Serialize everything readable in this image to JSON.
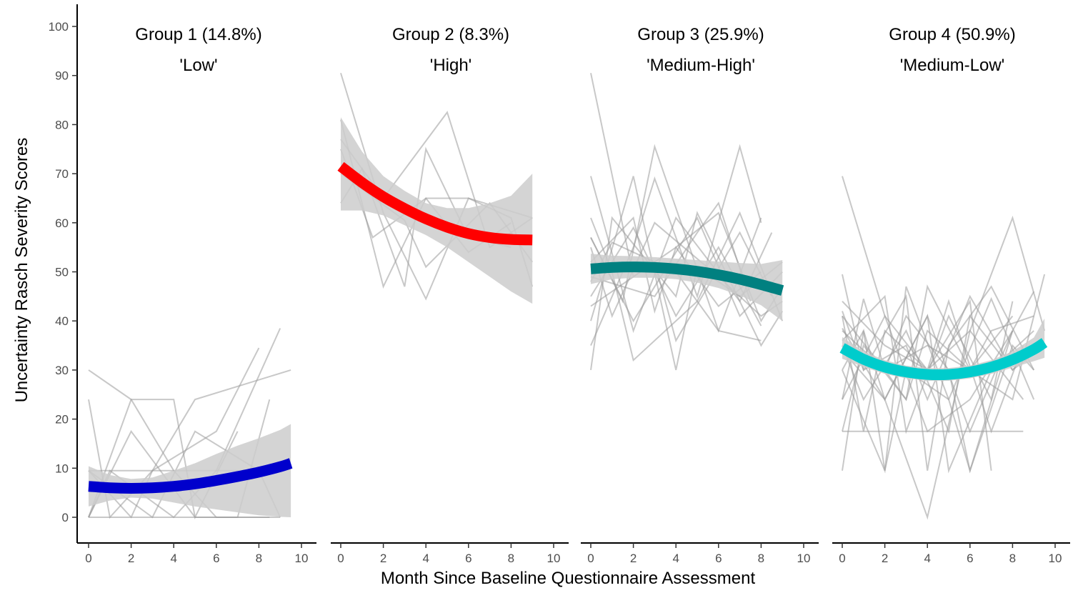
{
  "chart_data": {
    "type": "line",
    "ylabel": "Uncertainty Rasch Severity Scores",
    "xlabel": "Month Since Baseline Questionnaire Assessment",
    "ylim": [
      0,
      100
    ],
    "yticks": [
      0,
      10,
      20,
      30,
      40,
      50,
      60,
      70,
      80,
      90,
      100
    ],
    "xlim": [
      0,
      10
    ],
    "xticks": [
      0,
      2,
      4,
      6,
      8,
      10
    ],
    "grid": false,
    "legend": "none",
    "individual_line_color": "#9a9a9a",
    "ribbon_color": "#cccccc",
    "panels": [
      {
        "title": "Group 1 (14.8%)",
        "subtitle": "'Low'",
        "color": "#0000cc",
        "fit_x": [
          0,
          1,
          2,
          3,
          4,
          5,
          6,
          7,
          8,
          9,
          9.5
        ],
        "fit_y": [
          6.3,
          6.0,
          5.9,
          6.0,
          6.3,
          6.8,
          7.5,
          8.3,
          9.2,
          10.3,
          11.0
        ],
        "ribbon_lower": [
          2.2,
          3.4,
          4.0,
          3.8,
          3.0,
          2.2,
          1.6,
          1.0,
          0.4,
          0.1,
          0.0
        ],
        "ribbon_upper": [
          10.4,
          8.6,
          7.8,
          8.1,
          9.5,
          11.0,
          12.9,
          14.6,
          16.1,
          17.8,
          19.0
        ],
        "trajectories": [
          {
            "x": [
              0,
              2,
              4,
              6,
              8.5
            ],
            "y": [
              0,
              0,
              0,
              0,
              0
            ]
          },
          {
            "x": [
              0,
              2,
              4,
              6,
              8
            ],
            "y": [
              9.5,
              9.5,
              9.5,
              9.5,
              9.5
            ]
          },
          {
            "x": [
              0,
              2,
              4,
              6,
              9
            ],
            "y": [
              30,
              24,
              9.5,
              0,
              0
            ]
          },
          {
            "x": [
              0,
              1,
              3,
              5,
              9.5
            ],
            "y": [
              24,
              0,
              9.5,
              24,
              30
            ]
          },
          {
            "x": [
              0,
              2,
              4,
              5,
              7
            ],
            "y": [
              0,
              24,
              24,
              0,
              17.5
            ]
          },
          {
            "x": [
              0,
              2,
              3,
              6,
              8
            ],
            "y": [
              9.5,
              0,
              9.5,
              17.5,
              34.5
            ]
          },
          {
            "x": [
              0,
              1,
              4,
              6,
              9
            ],
            "y": [
              0,
              9.5,
              0,
              9.5,
              38.5
            ]
          },
          {
            "x": [
              0,
              3,
              5,
              8,
              9
            ],
            "y": [
              9.5,
              0,
              17.5,
              9.5,
              0
            ]
          },
          {
            "x": [
              0,
              2,
              5,
              7,
              8.5
            ],
            "y": [
              0,
              17.5,
              0,
              0,
              24
            ]
          }
        ]
      },
      {
        "title": "Group 2 (8.3%)",
        "subtitle": "'High'",
        "color": "#ff0000",
        "fit_x": [
          0,
          1,
          2,
          3,
          4,
          5,
          6,
          7,
          8,
          9
        ],
        "fit_y": [
          71.5,
          68.2,
          65.3,
          62.9,
          60.8,
          59.1,
          57.8,
          57.0,
          56.6,
          56.5
        ],
        "ribbon_lower": [
          62.5,
          62.5,
          61.5,
          59.5,
          57.5,
          55.0,
          52.0,
          49.0,
          46.0,
          43.5
        ],
        "ribbon_upper": [
          81.5,
          74.5,
          69.5,
          66.5,
          64.0,
          63.0,
          63.0,
          64.0,
          65.5,
          70.0
        ],
        "trajectories": [
          {
            "x": [
              0,
              2,
              4,
              6,
              8,
              9
            ],
            "y": [
              90.5,
              62,
              44.5,
              65,
              61,
              47
            ]
          },
          {
            "x": [
              0,
              2,
              5,
              7,
              9
            ],
            "y": [
              77,
              65,
              82.5,
              55,
              61
            ]
          },
          {
            "x": [
              0,
              1,
              3,
              4,
              6,
              8
            ],
            "y": [
              64,
              71,
              47,
              75,
              57,
              55
            ]
          },
          {
            "x": [
              0,
              2,
              4,
              6,
              9
            ],
            "y": [
              81,
              47,
              65,
              65,
              61
            ]
          },
          {
            "x": [
              0,
              3,
              4,
              7,
              9
            ],
            "y": [
              70,
              60.5,
              51,
              64,
              52
            ]
          },
          {
            "x": [
              0,
              1.5,
              4,
              6,
              8
            ],
            "y": [
              75,
              57,
              65,
              54,
              60
            ]
          }
        ]
      },
      {
        "title": "Group 3 (25.9%)",
        "subtitle": "'Medium-High'",
        "color": "#008080",
        "fit_x": [
          0,
          1,
          2,
          3,
          4,
          5,
          6,
          7,
          8,
          9
        ],
        "fit_y": [
          50.6,
          50.9,
          51.0,
          50.9,
          50.6,
          50.1,
          49.4,
          48.5,
          47.4,
          46.2
        ],
        "ribbon_lower": [
          47.5,
          48.5,
          48.8,
          48.8,
          48.5,
          47.8,
          46.7,
          45.2,
          43.2,
          40.0
        ],
        "ribbon_upper": [
          53.7,
          53.3,
          53.2,
          53.0,
          52.7,
          52.4,
          52.1,
          51.8,
          51.6,
          52.4
        ],
        "trajectories": [
          {
            "x": [
              0,
              2,
              4,
              6,
              8,
              9
            ],
            "y": [
              90.5,
              49,
              55,
              62,
              40,
              47
            ]
          },
          {
            "x": [
              0,
              2,
              4,
              7,
              8.5
            ],
            "y": [
              69.5,
              38,
              61,
              44,
              58
            ]
          },
          {
            "x": [
              0,
              1,
              4,
              5,
              8,
              9
            ],
            "y": [
              30,
              61,
              45,
              62,
              35,
              42
            ]
          },
          {
            "x": [
              0,
              2,
              3,
              5,
              7,
              8
            ],
            "y": [
              35,
              55,
              69,
              45,
              75.5,
              60
            ]
          },
          {
            "x": [
              0,
              1.5,
              3,
              6,
              8
            ],
            "y": [
              57,
              44,
              75.5,
              38,
              61
            ]
          },
          {
            "x": [
              0,
              2,
              4,
              5,
              7,
              9
            ],
            "y": [
              40,
              69.5,
              30,
              51,
              45,
              52
            ]
          },
          {
            "x": [
              0,
              1,
              3,
              6,
              8,
              9
            ],
            "y": [
              55,
              41,
              60,
              49,
              41,
              44
            ]
          },
          {
            "x": [
              0,
              3,
              5,
              6,
              7.5
            ],
            "y": [
              49,
              45,
              58,
              64,
              44
            ]
          },
          {
            "x": [
              0,
              2,
              4,
              6,
              8
            ],
            "y": [
              45,
              59,
              41,
              55,
              39
            ]
          },
          {
            "x": [
              0,
              1,
              2,
              5,
              7,
              9
            ],
            "y": [
              61,
              50,
              32,
              44,
              62,
              40
            ]
          },
          {
            "x": [
              0,
              2,
              3,
              4,
              6,
              8
            ],
            "y": [
              52,
              61,
              42,
              55,
              43,
              50
            ]
          },
          {
            "x": [
              0,
              1,
              4,
              6,
              8
            ],
            "y": [
              48,
              56,
              50,
              38,
              36
            ]
          },
          {
            "x": [
              0,
              2,
              5,
              7,
              9
            ],
            "y": [
              57,
              40,
              61,
              41,
              50
            ]
          },
          {
            "x": [
              0,
              3,
              4,
              7,
              8.5
            ],
            "y": [
              43,
              52,
              36,
              58,
              45
            ]
          }
        ]
      },
      {
        "title": "Group 4 (50.9%)",
        "subtitle": "'Medium-Low'",
        "color": "#00cccc",
        "fit_x": [
          0,
          1,
          2,
          3,
          4,
          5,
          6,
          7,
          8,
          9,
          9.5
        ],
        "fit_y": [
          34.5,
          32.2,
          30.6,
          29.6,
          29.1,
          29.1,
          29.6,
          30.6,
          32.1,
          34.2,
          35.6
        ],
        "ribbon_lower": [
          32.3,
          30.6,
          29.2,
          28.3,
          27.8,
          27.8,
          28.3,
          29.2,
          30.5,
          31.8,
          32.5
        ],
        "ribbon_upper": [
          36.7,
          33.8,
          32.0,
          30.9,
          30.4,
          30.4,
          30.9,
          32.0,
          33.8,
          36.6,
          40.5
        ],
        "trajectories": [
          {
            "x": [
              0,
              2,
              4,
              6,
              8.5
            ],
            "y": [
              17.5,
              17.5,
              17.5,
              17.5,
              17.5
            ]
          },
          {
            "x": [
              0,
              2,
              4,
              6,
              8,
              9.5
            ],
            "y": [
              69.5,
              41,
              30,
              38,
              61,
              38
            ]
          },
          {
            "x": [
              0,
              1,
              2,
              4,
              6,
              8,
              9
            ],
            "y": [
              9.5,
              38,
              24,
              41,
              17.5,
              38,
              46
            ]
          },
          {
            "x": [
              0,
              2,
              4,
              6,
              8.5
            ],
            "y": [
              38.5,
              24,
              0,
              38,
              24
            ]
          },
          {
            "x": [
              0,
              1,
              3,
              4,
              5,
              7,
              9
            ],
            "y": [
              42,
              30,
              45,
              9.5,
              35,
              47,
              30
            ]
          },
          {
            "x": [
              0,
              2,
              3,
              5,
              6,
              8
            ],
            "y": [
              30,
              9.5,
              47,
              24,
              9.5,
              38
            ]
          },
          {
            "x": [
              0,
              1,
              2,
              4,
              6,
              8,
              9.5
            ],
            "y": [
              24,
              44.5,
              30,
              35,
              30,
              24,
              49.5
            ]
          },
          {
            "x": [
              0,
              2,
              3,
              5,
              7,
              8
            ],
            "y": [
              36,
              45,
              17.5,
              41,
              24,
              44
            ]
          },
          {
            "x": [
              0,
              1,
              3,
              4,
              6,
              8,
              9
            ],
            "y": [
              49.5,
              30,
              35,
              24,
              45,
              30,
              35
            ]
          },
          {
            "x": [
              0,
              2,
              4,
              5,
              7,
              9
            ],
            "y": [
              34,
              24,
              41,
              9.5,
              30,
              38
            ]
          },
          {
            "x": [
              0,
              1,
              2,
              4,
              6,
              7
            ],
            "y": [
              41,
              17.5,
              38,
              30,
              44,
              9.5
            ]
          },
          {
            "x": [
              0,
              2,
              3,
              5,
              6,
              8,
              9
            ],
            "y": [
              38,
              30,
              41,
              30,
              9.5,
              35,
              30
            ]
          },
          {
            "x": [
              0,
              1,
              3,
              4,
              6,
              8
            ],
            "y": [
              17.5,
              35,
              24,
              38,
              30,
              41
            ]
          },
          {
            "x": [
              0,
              2,
              4,
              5,
              7,
              8.5
            ],
            "y": [
              44,
              35,
              30,
              44,
              17.5,
              35
            ]
          },
          {
            "x": [
              0,
              1,
              2,
              3,
              5,
              7,
              9
            ],
            "y": [
              30,
              38,
              9.5,
              30,
              24,
              44.5,
              24
            ]
          },
          {
            "x": [
              0,
              2,
              4,
              6,
              8
            ],
            "y": [
              24,
              41,
              17.5,
              24,
              38
            ]
          },
          {
            "x": [
              0,
              1,
              3,
              5,
              6,
              8,
              9.5
            ],
            "y": [
              35,
              24,
              38,
              17.5,
              41,
              30,
              35
            ]
          },
          {
            "x": [
              0,
              2,
              3,
              4,
              6,
              7,
              9
            ],
            "y": [
              41,
              30,
              24,
              47,
              30,
              38,
              41
            ]
          }
        ]
      }
    ]
  }
}
